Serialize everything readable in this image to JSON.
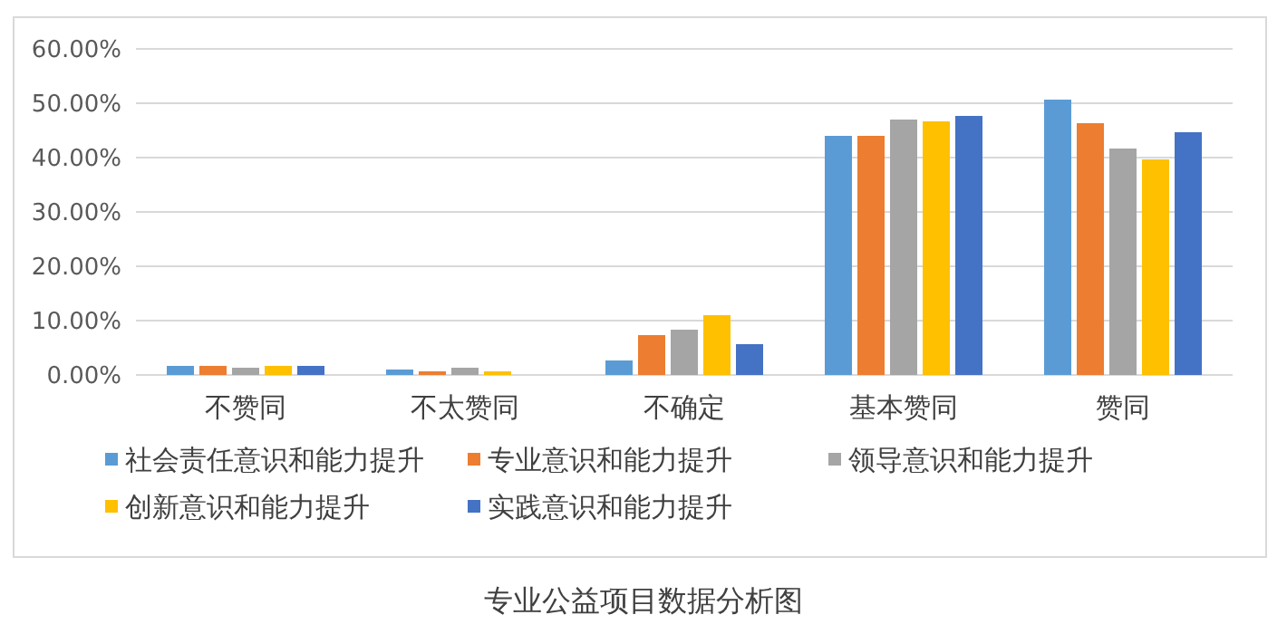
{
  "chart_data": {
    "type": "bar",
    "title": "专业公益项目数据分析图",
    "categories": [
      "不赞同",
      "不太赞同",
      "不确定",
      "基本赞同",
      "赞同"
    ],
    "series": [
      {
        "name": "社会责任意识和能力提升",
        "color": "#5b9bd5",
        "values": [
          1.67,
          1.0,
          2.67,
          44.0,
          50.67
        ]
      },
      {
        "name": "专业意识和能力提升",
        "color": "#ed7d31",
        "values": [
          1.67,
          0.67,
          7.33,
          44.0,
          46.33
        ]
      },
      {
        "name": "领导意识和能力提升",
        "color": "#a5a5a5",
        "values": [
          1.33,
          1.33,
          8.33,
          47.0,
          41.67
        ]
      },
      {
        "name": "创新意识和能力提升",
        "color": "#ffc000",
        "values": [
          1.67,
          0.67,
          11.0,
          46.67,
          39.67
        ]
      },
      {
        "name": "实践意识和能力提升",
        "color": "#4472c4",
        "values": [
          1.67,
          0,
          5.67,
          47.67,
          44.67
        ]
      }
    ],
    "ylim": [
      0,
      60
    ],
    "yticks": [
      {
        "value": 0,
        "label": "0.00%"
      },
      {
        "value": 10,
        "label": "10.00%"
      },
      {
        "value": 20,
        "label": "20.00%"
      },
      {
        "value": 30,
        "label": "30.00%"
      },
      {
        "value": 40,
        "label": "40.00%"
      },
      {
        "value": 50,
        "label": "50.00%"
      },
      {
        "value": 60,
        "label": "60.00%"
      }
    ],
    "grid": "y",
    "legend": "bottom"
  }
}
